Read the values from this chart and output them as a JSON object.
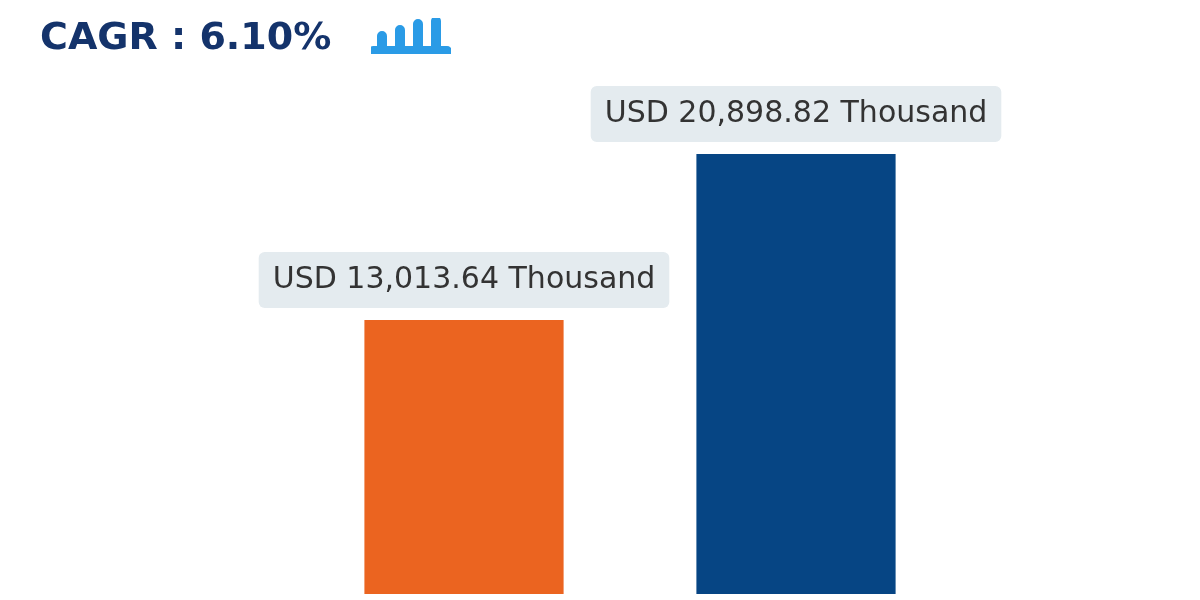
{
  "chart_data": {
    "type": "bar",
    "title": "CAGR : 6.10%",
    "categories": [
      null,
      null
    ],
    "values": [
      13013.64,
      20898.82
    ],
    "colors": [
      "#eb6420",
      "#064584"
    ],
    "value_labels": [
      "USD 13,013.64 Thousand",
      "USD 20,898.82 Thousand"
    ]
  }
}
